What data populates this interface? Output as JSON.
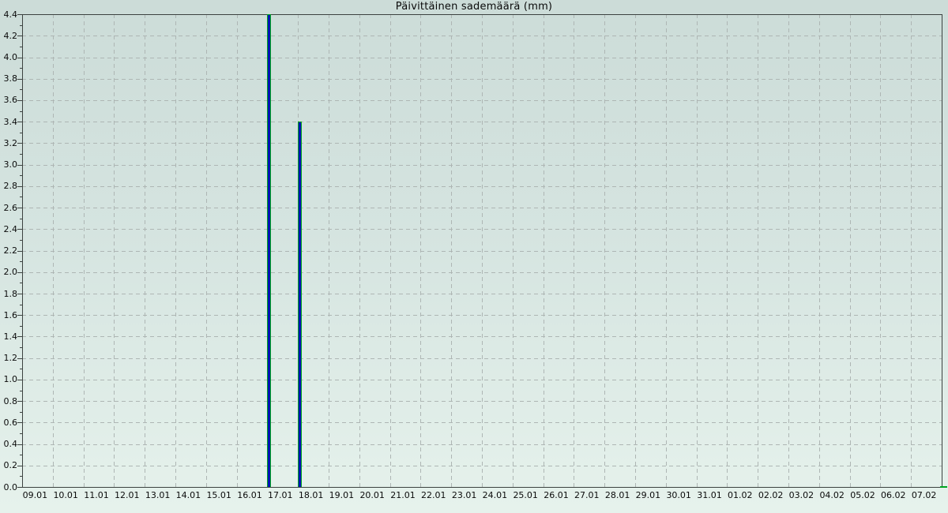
{
  "chart_data": {
    "type": "bar",
    "title": "Päivittäinen sademäärä (mm)",
    "categories": [
      "09.01",
      "10.01",
      "11.01",
      "12.01",
      "13.01",
      "14.01",
      "15.01",
      "16.01",
      "17.01",
      "18.01",
      "19.01",
      "20.01",
      "21.01",
      "22.01",
      "23.01",
      "24.01",
      "25.01",
      "26.01",
      "27.01",
      "28.01",
      "29.01",
      "30.01",
      "31.01",
      "01.02",
      "02.02",
      "03.02",
      "04.02",
      "05.02",
      "06.02",
      "07.02"
    ],
    "values": [
      0,
      0,
      0,
      0,
      0,
      0,
      0,
      0,
      4.4,
      3.4,
      0,
      0,
      0,
      0,
      0,
      0,
      0,
      0,
      0,
      0,
      0,
      0,
      0,
      0,
      0,
      0,
      0,
      0,
      0,
      0
    ],
    "y_tick_labels": [
      "0.0",
      "0.2",
      "0.4",
      "0.6",
      "0.8",
      "1.0",
      "1.2",
      "1.4",
      "1.6",
      "1.8",
      "2.0",
      "2.2",
      "2.4",
      "2.6",
      "2.8",
      "3.0",
      "3.2",
      "3.4",
      "3.6",
      "3.8",
      "4.0",
      "4.2",
      "4.4"
    ],
    "ylim": [
      0,
      4.4
    ],
    "y_major_step": 0.2,
    "y_minor_step": 0.1,
    "xlabel": "",
    "ylabel": "",
    "legend_position": "none",
    "grid": "dashed, vertical line at each day boundary, horizontal line at each 0.2 step",
    "bar_alignment": "narrow bar drawn at the day-start boundary of its category",
    "colors": {
      "bar_fill": "#0014b4",
      "bar_border": "#00a41e",
      "grid": "#aeb6b4",
      "axis": "#3c4240",
      "background_top": "#ccdcd8",
      "background_bottom": "#e6f2ec",
      "text": "#0a0a0a",
      "corner_mark": "#00a41e"
    }
  }
}
